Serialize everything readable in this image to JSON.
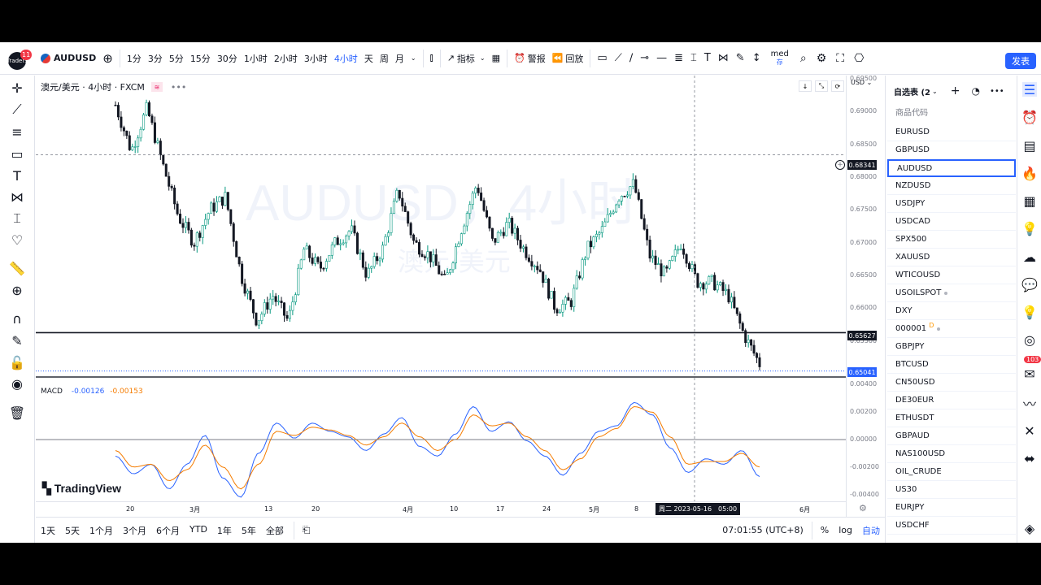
{
  "header": {
    "avatar_text": "Traders",
    "notification_count": "11",
    "symbol": "AUDUSD",
    "intervals": [
      "1分",
      "3分",
      "5分",
      "15分",
      "30分",
      "1小时",
      "2小时",
      "3小时",
      "4小时",
      "天",
      "周",
      "月"
    ],
    "active_interval": "4小时",
    "indicators_label": "指标",
    "alert_label": "警报",
    "replay_label": "回放",
    "truncated_label": "med",
    "truncated_label2": "存",
    "publish_label": "发表"
  },
  "chart": {
    "legend_title": "澳元/美元 · 4小时 · FXCM",
    "watermark_symbol": "AUDUSD，4小时",
    "watermark_name": "澳元/美元",
    "currency": "USD",
    "logo_text": "TradingView",
    "crosshair_price": "0.68341",
    "crosshair_time": "周二 2023-05-16　05:00",
    "horizontal_line_price": "0.65627",
    "current_price": "0.65041"
  },
  "chart_data": [
    {
      "type": "candlestick",
      "title": "澳元/美元 · 4小时 · FXCM",
      "x_tick_labels": [
        "20",
        "3月",
        "13",
        "20",
        "4月",
        "10",
        "17",
        "24",
        "5月",
        "8",
        "6月"
      ],
      "y_tick_labels": [
        "0.69500",
        "0.69000",
        "0.68500",
        "0.68000",
        "0.67500",
        "0.67000",
        "0.66500",
        "0.66000",
        "0.65500"
      ],
      "ylim": [
        0.6495,
        0.6955
      ],
      "approx_close_path": [
        {
          "x": "2月16日",
          "y": 0.691
        },
        {
          "x": "2月17日",
          "y": 0.684
        },
        {
          "x": "2月20日",
          "y": 0.6905
        },
        {
          "x": "2月23日",
          "y": 0.682
        },
        {
          "x": "2月28日",
          "y": 0.674
        },
        {
          "x": "3月1日",
          "y": 0.67
        },
        {
          "x": "3月3日",
          "y": 0.675
        },
        {
          "x": "3月6日",
          "y": 0.677
        },
        {
          "x": "3月8日",
          "y": 0.665
        },
        {
          "x": "3月9日",
          "y": 0.658
        },
        {
          "x": "3月10日",
          "y": 0.662
        },
        {
          "x": "3月13日",
          "y": 0.658
        },
        {
          "x": "3月15日",
          "y": 0.669
        },
        {
          "x": "3月17日",
          "y": 0.666
        },
        {
          "x": "3月20日",
          "y": 0.67
        },
        {
          "x": "3月22日",
          "y": 0.672
        },
        {
          "x": "3月24日",
          "y": 0.665
        },
        {
          "x": "3月28日",
          "y": 0.669
        },
        {
          "x": "3月31日",
          "y": 0.678
        },
        {
          "x": "4月3日",
          "y": 0.67
        },
        {
          "x": "4月5日",
          "y": 0.668
        },
        {
          "x": "4月10日",
          "y": 0.664
        },
        {
          "x": "4月12日",
          "y": 0.672
        },
        {
          "x": "4月14日",
          "y": 0.679
        },
        {
          "x": "4月17日",
          "y": 0.67
        },
        {
          "x": "4月19日",
          "y": 0.673
        },
        {
          "x": "4月21日",
          "y": 0.669
        },
        {
          "x": "4月24日",
          "y": 0.666
        },
        {
          "x": "4月27日",
          "y": 0.66
        },
        {
          "x": "5月1日",
          "y": 0.661
        },
        {
          "x": "5月3日",
          "y": 0.669
        },
        {
          "x": "5月5日",
          "y": 0.672
        },
        {
          "x": "5月8日",
          "y": 0.677
        },
        {
          "x": "5月10日",
          "y": 0.679
        },
        {
          "x": "5月12日",
          "y": 0.668
        },
        {
          "x": "5月15日",
          "y": 0.665
        },
        {
          "x": "5月16日",
          "y": 0.67
        },
        {
          "x": "5月18日",
          "y": 0.664
        },
        {
          "x": "5月19日",
          "y": 0.664
        },
        {
          "x": "5月23日",
          "y": 0.662
        },
        {
          "x": "5月24日",
          "y": 0.656
        },
        {
          "x": "5月25日",
          "y": 0.6515
        }
      ],
      "horizontal_lines": [
        0.65627
      ]
    },
    {
      "type": "line",
      "title": "MACD",
      "values_shown": [
        "-0.00126",
        "-0.00153"
      ],
      "y_tick_labels": [
        "0.00400",
        "0.00200",
        "0.00000",
        "-0.00200",
        "-0.00400"
      ],
      "ylim": [
        -0.0045,
        0.0045
      ],
      "series": [
        {
          "name": "",
          "color": "#2962ff",
          "values": [
            -0.0012,
            -0.0025,
            -0.0018,
            -0.0036,
            -0.0018,
            0.0003,
            -0.0028,
            -0.0042,
            -0.001,
            0.0012,
            0.0001,
            0.0012,
            0.0006,
            0.0002,
            -0.0008,
            0.0004,
            0.0016,
            -0.0005,
            -0.0012,
            0.0004,
            0.0024,
            0.0006,
            0.0013,
            -0.0001,
            -0.0012,
            -0.0026,
            -0.001,
            0.0006,
            0.001,
            0.0027,
            0.0018,
            -0.0006,
            -0.0024,
            -0.0014,
            -0.0018,
            -0.0008,
            -0.0027
          ]
        },
        {
          "name": "",
          "color": "#f57c00",
          "values": [
            -0.0008,
            -0.002,
            -0.0018,
            -0.003,
            -0.0022,
            -0.0004,
            -0.002,
            -0.0036,
            -0.0018,
            0.0006,
            0.0003,
            0.0009,
            0.0007,
            0.0003,
            -0.0004,
            0.0002,
            0.0012,
            0.0002,
            -0.0008,
            0.0,
            0.0018,
            0.001,
            0.0012,
            0.0002,
            -0.0008,
            -0.0022,
            -0.0014,
            0.0002,
            0.0008,
            0.0024,
            0.002,
            0.0002,
            -0.0018,
            -0.0016,
            -0.0016,
            -0.001,
            -0.002
          ]
        }
      ]
    }
  ],
  "bottom": {
    "ranges": [
      "1天",
      "5天",
      "1个月",
      "3个月",
      "6个月",
      "YTD",
      "1年",
      "5年",
      "全部"
    ],
    "clock": "07:01:55 (UTC+8)",
    "percent": "%",
    "log": "log",
    "auto": "自动"
  },
  "watchlist": {
    "title": "自选表 (2",
    "column_header": "商品代码",
    "items": [
      "EURUSD",
      "GBPUSD",
      "AUDUSD",
      "NZDUSD",
      "USDJPY",
      "USDCAD",
      "SPX500",
      "XAUUSD",
      "WTICOUSD",
      "USOILSPOT",
      "DXY",
      "000001",
      "GBPJPY",
      "BTCUSD",
      "CN50USD",
      "DE30EUR",
      "ETHUSDT",
      "GBPAUD",
      "NAS100USD",
      "OIL_CRUDE",
      "US30",
      "EURJPY",
      "USDCHF"
    ],
    "selected": "AUDUSD",
    "marker_d": "D",
    "right_badge": "103"
  },
  "colors": {
    "accent": "#2962ff",
    "candle_up": "#089981",
    "candle_down": "#131722",
    "macd": "#2962ff",
    "signal": "#f57c00"
  }
}
